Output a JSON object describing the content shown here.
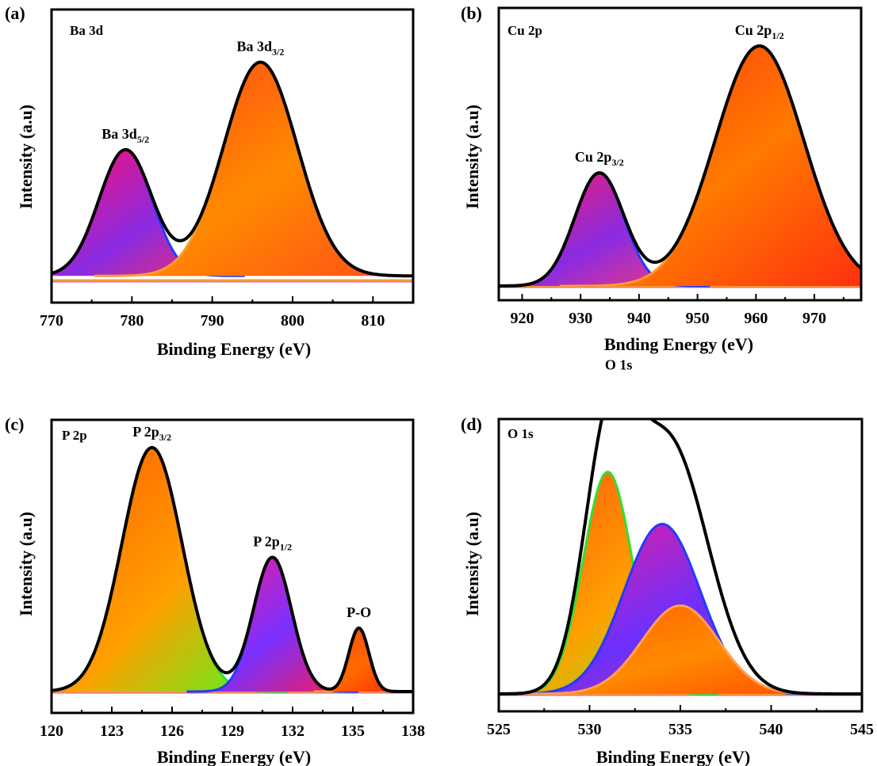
{
  "chart_data": [
    {
      "type": "area",
      "panel": "(a)",
      "inset_label": "Ba 3d",
      "xlabel": "Binding Energy (eV)",
      "ylabel": "Intensity (a.u)",
      "xlim": [
        770,
        815
      ],
      "xticks": [
        770,
        780,
        790,
        800,
        810
      ],
      "baseline": 0.02,
      "series": [
        {
          "name": "Ba 3d5/2",
          "label_main": "Ba 3d",
          "label_sub": "5/2",
          "center": 779.2,
          "height": 0.56,
          "sigma": 3.3,
          "gradient": [
            "#ff0d6e",
            "#8a2be2",
            "#ff2d55"
          ],
          "edge": "#1f3cff"
        },
        {
          "name": "Ba 3d3/2",
          "label_main": "Ba 3d",
          "label_sub": "3/2",
          "center": 796.0,
          "height": 0.95,
          "sigma": 4.6,
          "gradient": [
            "#ff3a1a",
            "#ff8a00",
            "#ff4d1a"
          ],
          "edge": "#ff9a30"
        }
      ]
    },
    {
      "type": "area",
      "panel": "(b)",
      "inset_label": "Cu 2p",
      "xlabel": "Bnding Energy (eV)",
      "ylabel": "Intensity (a.u)",
      "xlim": [
        916,
        978
      ],
      "xticks": [
        920,
        930,
        940,
        950,
        960,
        970
      ],
      "baseline": 0.0,
      "series": [
        {
          "name": "Cu 2p3/2",
          "label_main": "Cu 2p",
          "label_sub": "3/2",
          "center": 933.2,
          "height": 0.47,
          "sigma": 4.2,
          "gradient": [
            "#ff1a5a",
            "#8a2be2",
            "#ff3b6e"
          ],
          "edge": "#1f3cff"
        },
        {
          "name": "Cu 2p1/2",
          "label_main": "Cu 2p",
          "label_sub": "1/2",
          "center": 960.6,
          "height": 1.0,
          "sigma": 7.6,
          "gradient": [
            "#ff2a10",
            "#ff7a00",
            "#ff3010"
          ],
          "edge": "#ff9a30"
        }
      ]
    },
    {
      "type": "area",
      "panel": "(c)",
      "inset_label": "P 2p",
      "xlabel": "Binding Energy (eV)",
      "ylabel": "Intensity (a.u)",
      "xlim": [
        120,
        138
      ],
      "xticks": [
        120,
        123,
        126,
        129,
        132,
        135,
        138
      ],
      "baseline": 0.0,
      "series": [
        {
          "name": "P 2p3/2",
          "label_main": "P 2p",
          "label_sub": "3/2",
          "center": 125.0,
          "height": 1.0,
          "sigma": 1.5,
          "gradient": [
            "#ff5a00",
            "#ffa000",
            "#40ff20"
          ],
          "edge": "#30e030"
        },
        {
          "name": "P 2p1/2",
          "label_main": "P 2p",
          "label_sub": "1/2",
          "center": 131.0,
          "height": 0.55,
          "sigma": 0.95,
          "gradient": [
            "#ff1a8a",
            "#7a30ff",
            "#ff1a4a"
          ],
          "edge": "#1f3cff"
        },
        {
          "name": "P-O",
          "label_main": "P-O",
          "label_sub": "",
          "center": 135.3,
          "height": 0.26,
          "sigma": 0.5,
          "gradient": [
            "#ff3a10",
            "#ff6a00",
            "#ff2a00"
          ],
          "edge": "#ff9a30"
        }
      ]
    },
    {
      "type": "area",
      "panel": "(d)",
      "inset_label": "O 1s",
      "xlabel": "Binding Energy (eV)",
      "ylabel": "Intensity (a.u)",
      "xlim": [
        525,
        545
      ],
      "xticks": [
        525,
        530,
        535,
        540,
        545
      ],
      "baseline": 0.0,
      "peak_label": "O 1s",
      "envelope": true,
      "series": [
        {
          "name": "O 1s component 1",
          "center": 531.0,
          "height": 0.98,
          "sigma": 1.35,
          "gradient": [
            "#ff4d10",
            "#ffa000",
            "#50ff20"
          ],
          "edge": "#30e030"
        },
        {
          "name": "O 1s component 2",
          "center": 534.0,
          "height": 0.75,
          "sigma": 2.1,
          "gradient": [
            "#ff1a8a",
            "#6a30ff",
            "#ff2a50"
          ],
          "edge": "#1f3cff"
        },
        {
          "name": "O 1s component 3",
          "center": 535.0,
          "height": 0.39,
          "sigma": 2.1,
          "gradient": [
            "#ff5a00",
            "#ff8a00",
            "#ff4a00"
          ],
          "edge": "#ffa050"
        }
      ]
    }
  ]
}
